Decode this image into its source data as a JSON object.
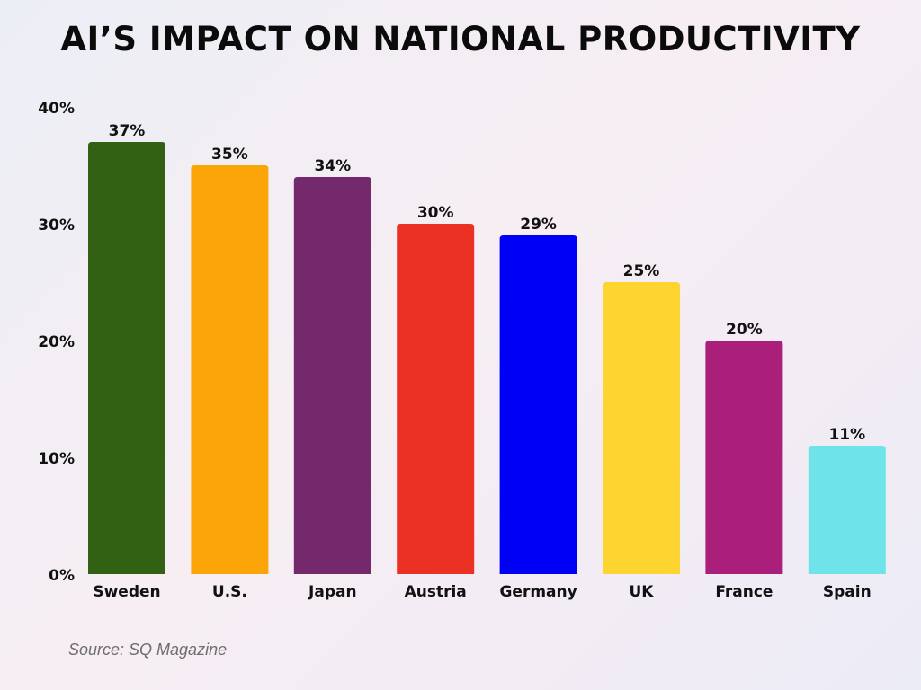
{
  "chart_data": {
    "type": "bar",
    "title": "AI’S IMPACT ON NATIONAL PRODUCTIVITY",
    "categories": [
      "Sweden",
      "U.S.",
      "Japan",
      "Austria",
      "Germany",
      "UK",
      "France",
      "Spain"
    ],
    "values": [
      37,
      35,
      34,
      30,
      29,
      25,
      20,
      11
    ],
    "value_labels": [
      "37%",
      "35%",
      "34%",
      "30%",
      "29%",
      "25%",
      "20%",
      "11%"
    ],
    "colors": [
      "#336114",
      "#fba508",
      "#74296c",
      "#ea3124",
      "#0000f5",
      "#fed430",
      "#a91f7a",
      "#6ee3e8"
    ],
    "ylim": [
      0,
      40
    ],
    "yticks": [
      0,
      10,
      20,
      30,
      40
    ],
    "ytick_labels": [
      "0%",
      "10%",
      "20%",
      "30%",
      "40%"
    ],
    "xlabel": "",
    "ylabel": "",
    "grid": false,
    "legend": "none"
  },
  "footer": {
    "source": "Source: SQ Magazine"
  }
}
